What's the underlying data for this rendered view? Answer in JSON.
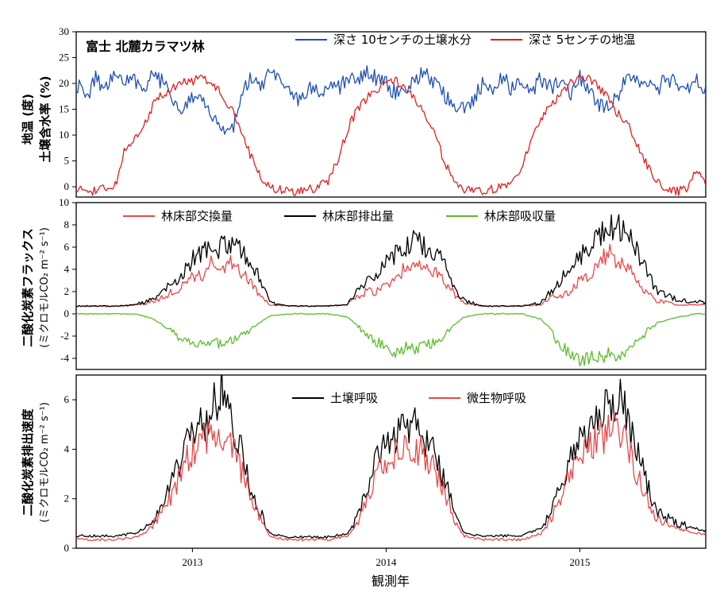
{
  "chart_data": [
    {
      "type": "line",
      "annotation": "富士 北麓カラマツ林",
      "ylabel_lines": [
        "地温 (度)",
        "土壌含水率 (%)"
      ],
      "ylim": [
        -2,
        30
      ],
      "yticks": [
        0,
        5,
        10,
        15,
        20,
        25,
        30
      ],
      "xlim": [
        2012.4,
        2015.65
      ],
      "legend_position": "top-right",
      "series": [
        {
          "name": "深さ 10センチの土壌水分",
          "color": "#1f4fb0",
          "x": [
            2012.4,
            2012.45,
            2012.5,
            2012.55,
            2012.6,
            2012.65,
            2012.7,
            2012.75,
            2012.8,
            2012.85,
            2012.9,
            2012.95,
            2013.0,
            2013.05,
            2013.1,
            2013.15,
            2013.2,
            2013.25,
            2013.3,
            2013.35,
            2013.4,
            2013.45,
            2013.5,
            2013.55,
            2013.6,
            2013.65,
            2013.7,
            2013.75,
            2013.8,
            2013.85,
            2013.9,
            2013.95,
            2014.0,
            2014.05,
            2014.1,
            2014.15,
            2014.2,
            2014.25,
            2014.3,
            2014.35,
            2014.4,
            2014.45,
            2014.5,
            2014.55,
            2014.6,
            2014.65,
            2014.7,
            2014.75,
            2014.8,
            2014.85,
            2014.9,
            2014.95,
            2015.0,
            2015.05,
            2015.1,
            2015.15,
            2015.2,
            2015.25,
            2015.3,
            2015.35,
            2015.4,
            2015.45,
            2015.5,
            2015.55,
            2015.6,
            2015.65
          ],
          "y": [
            20,
            17,
            21,
            19,
            22,
            20,
            21,
            19,
            22,
            20,
            17,
            15,
            18,
            16,
            14,
            12,
            10,
            17,
            21,
            19,
            22,
            20,
            18,
            17,
            19,
            18,
            20,
            19,
            21,
            20,
            22,
            21,
            20,
            18,
            19,
            21,
            22,
            20,
            18,
            16,
            15,
            17,
            20,
            18,
            21,
            19,
            20,
            18,
            21,
            19,
            20,
            18,
            21,
            19,
            16,
            15,
            18,
            22,
            21,
            20,
            19,
            21,
            20,
            19,
            21,
            19
          ]
        },
        {
          "name": "深さ 5センチの地温",
          "color": "#e02020",
          "x": [
            2012.4,
            2012.45,
            2012.5,
            2012.55,
            2012.6,
            2012.65,
            2012.7,
            2012.75,
            2012.8,
            2012.85,
            2012.9,
            2012.95,
            2013.0,
            2013.05,
            2013.1,
            2013.15,
            2013.2,
            2013.25,
            2013.3,
            2013.35,
            2013.4,
            2013.45,
            2013.5,
            2013.55,
            2013.6,
            2013.65,
            2013.7,
            2013.75,
            2013.8,
            2013.85,
            2013.9,
            2013.95,
            2014.0,
            2014.05,
            2014.1,
            2014.15,
            2014.2,
            2014.25,
            2014.3,
            2014.35,
            2014.4,
            2014.45,
            2014.5,
            2014.55,
            2014.6,
            2014.65,
            2014.7,
            2014.75,
            2014.8,
            2014.85,
            2014.9,
            2014.95,
            2015.0,
            2015.05,
            2015.1,
            2015.15,
            2015.2,
            2015.25,
            2015.3,
            2015.35,
            2015.4,
            2015.45,
            2015.5,
            2015.55,
            2015.6,
            2015.65
          ],
          "y": [
            -0.5,
            -1,
            -0.8,
            -0.5,
            0,
            7,
            9,
            12,
            16,
            18,
            19,
            20,
            20.5,
            21,
            20,
            18,
            15,
            11,
            6,
            2,
            0,
            -0.5,
            -1,
            -0.8,
            -0.5,
            0,
            1,
            5,
            11,
            15,
            17,
            19,
            20,
            20.5,
            19,
            17,
            14,
            10,
            5,
            1,
            -0.5,
            -1,
            -0.8,
            -0.5,
            0,
            1,
            4,
            9,
            13,
            16,
            18,
            20,
            21.5,
            21,
            19,
            17,
            14,
            12,
            8,
            4,
            1,
            -0.5,
            -1,
            -0.5,
            3,
            0.5
          ]
        }
      ]
    },
    {
      "type": "line",
      "ylabel_lines": [
        "二酸化炭素フラックス",
        "(ミクロモルCO₂ m⁻² s⁻¹)"
      ],
      "ylim": [
        -5,
        10
      ],
      "yticks": [
        -4,
        -2,
        0,
        2,
        4,
        6,
        8,
        10
      ],
      "xlim": [
        2012.4,
        2015.65
      ],
      "legend_position": "top",
      "series": [
        {
          "name": "林床部交換量",
          "color": "#e8484a",
          "x": [
            2012.4,
            2012.5,
            2012.6,
            2012.7,
            2012.75,
            2012.8,
            2012.85,
            2012.9,
            2012.95,
            2013.0,
            2013.05,
            2013.1,
            2013.15,
            2013.2,
            2013.25,
            2013.3,
            2013.35,
            2013.4,
            2013.5,
            2013.6,
            2013.7,
            2013.8,
            2013.85,
            2013.9,
            2013.95,
            2014.0,
            2014.05,
            2014.1,
            2014.15,
            2014.2,
            2014.25,
            2014.3,
            2014.35,
            2014.4,
            2014.5,
            2014.6,
            2014.7,
            2014.8,
            2014.85,
            2014.9,
            2014.95,
            2015.0,
            2015.05,
            2015.1,
            2015.15,
            2015.2,
            2015.25,
            2015.3,
            2015.35,
            2015.4,
            2015.5,
            2015.6,
            2015.65
          ],
          "y": [
            0.7,
            0.7,
            0.7,
            0.8,
            0.9,
            1.2,
            1.5,
            2,
            2.5,
            3.5,
            3.5,
            4.5,
            3.8,
            4.5,
            3.6,
            3,
            1.5,
            0.8,
            0.7,
            0.7,
            0.7,
            0.8,
            1.5,
            2,
            2,
            2.5,
            3,
            4.2,
            4.5,
            4,
            3.8,
            3,
            1.8,
            1,
            0.7,
            0.7,
            0.7,
            0.8,
            1.5,
            1.5,
            2,
            3,
            3.5,
            4.5,
            5.5,
            4.5,
            4,
            3,
            1.8,
            1.2,
            0.8,
            0.8,
            0.9
          ]
        },
        {
          "name": "林床部排出量",
          "color": "#000000",
          "x": [
            2012.4,
            2012.5,
            2012.6,
            2012.7,
            2012.75,
            2012.8,
            2012.85,
            2012.9,
            2012.95,
            2013.0,
            2013.05,
            2013.1,
            2013.15,
            2013.2,
            2013.25,
            2013.3,
            2013.35,
            2013.4,
            2013.5,
            2013.6,
            2013.7,
            2013.8,
            2013.85,
            2013.9,
            2013.95,
            2014.0,
            2014.05,
            2014.1,
            2014.15,
            2014.2,
            2014.25,
            2014.3,
            2014.35,
            2014.4,
            2014.5,
            2014.6,
            2014.7,
            2014.8,
            2014.85,
            2014.9,
            2014.95,
            2015.0,
            2015.05,
            2015.1,
            2015.15,
            2015.2,
            2015.25,
            2015.3,
            2015.35,
            2015.4,
            2015.5,
            2015.6,
            2015.65
          ],
          "y": [
            0.7,
            0.7,
            0.7,
            0.8,
            1,
            1.5,
            2,
            2.8,
            3.5,
            5,
            5.5,
            5.8,
            6,
            6,
            5.8,
            5,
            3,
            1,
            0.7,
            0.7,
            0.7,
            0.8,
            2,
            3,
            3.8,
            4.5,
            5.5,
            6,
            6.5,
            6,
            5.5,
            4.5,
            2.5,
            1.2,
            0.7,
            0.7,
            0.7,
            1,
            2,
            3,
            4,
            5,
            6,
            7,
            7.8,
            8,
            7,
            5.5,
            3.5,
            2,
            1.3,
            1.1,
            1
          ]
        },
        {
          "name": "林床部吸収量",
          "color": "#5bbd2a",
          "x": [
            2012.4,
            2012.5,
            2012.6,
            2012.7,
            2012.75,
            2012.8,
            2012.85,
            2012.9,
            2012.95,
            2013.0,
            2013.05,
            2013.1,
            2013.15,
            2013.2,
            2013.25,
            2013.3,
            2013.35,
            2013.4,
            2013.5,
            2013.6,
            2013.7,
            2013.8,
            2013.85,
            2013.9,
            2013.95,
            2014.0,
            2014.05,
            2014.1,
            2014.15,
            2014.2,
            2014.25,
            2014.3,
            2014.35,
            2014.4,
            2014.5,
            2014.6,
            2014.7,
            2014.8,
            2014.85,
            2014.9,
            2014.95,
            2015.0,
            2015.05,
            2015.1,
            2015.15,
            2015.2,
            2015.25,
            2015.3,
            2015.35,
            2015.4,
            2015.5,
            2015.6,
            2015.65
          ],
          "y": [
            0,
            0,
            0,
            0,
            -0.2,
            -0.5,
            -1,
            -1.5,
            -2.5,
            -2.8,
            -2.5,
            -2.5,
            -2.8,
            -2.5,
            -2,
            -1.5,
            -0.8,
            -0.2,
            0,
            0,
            0,
            -0.3,
            -1,
            -2,
            -2.5,
            -3,
            -3.5,
            -3,
            -3.2,
            -2.8,
            -2.5,
            -2,
            -1,
            -0.3,
            0,
            0,
            0,
            -0.5,
            -1.5,
            -3,
            -3.5,
            -4,
            -4,
            -4,
            -3.5,
            -3.8,
            -3,
            -2.5,
            -1.5,
            -0.8,
            -0.3,
            0,
            0
          ]
        }
      ]
    },
    {
      "type": "line",
      "ylabel_lines": [
        "二酸化炭素排出速度",
        "(ミクロモルCO₂ m⁻² s⁻¹)"
      ],
      "ylim": [
        0,
        7
      ],
      "yticks": [
        0,
        2,
        4,
        6
      ],
      "xlim": [
        2012.4,
        2015.65
      ],
      "xticks": [
        2013,
        2014,
        2015
      ],
      "xlabel": "観測年",
      "legend_position": "top",
      "series": [
        {
          "name": "土壌呼吸",
          "color": "#000000",
          "x": [
            2012.4,
            2012.5,
            2012.6,
            2012.7,
            2012.75,
            2012.8,
            2012.85,
            2012.9,
            2012.95,
            2013.0,
            2013.05,
            2013.1,
            2013.15,
            2013.2,
            2013.25,
            2013.3,
            2013.35,
            2013.4,
            2013.5,
            2013.6,
            2013.7,
            2013.8,
            2013.85,
            2013.9,
            2013.95,
            2014.0,
            2014.05,
            2014.1,
            2014.15,
            2014.2,
            2014.25,
            2014.3,
            2014.35,
            2014.4,
            2014.5,
            2014.6,
            2014.7,
            2014.8,
            2014.85,
            2014.9,
            2014.95,
            2015.0,
            2015.05,
            2015.1,
            2015.15,
            2015.2,
            2015.25,
            2015.3,
            2015.35,
            2015.4,
            2015.5,
            2015.6,
            2015.65
          ],
          "y": [
            0.5,
            0.5,
            0.5,
            0.6,
            0.8,
            1.2,
            1.8,
            2.8,
            3.8,
            4.8,
            5,
            5.5,
            6.5,
            5,
            4,
            2.5,
            1.5,
            0.6,
            0.45,
            0.45,
            0.45,
            0.6,
            1.2,
            2.5,
            3.5,
            4.2,
            4.5,
            4.8,
            4.9,
            4.5,
            3.8,
            2.8,
            1.5,
            0.6,
            0.5,
            0.5,
            0.5,
            0.8,
            1.5,
            2.5,
            3.5,
            4.3,
            5,
            5.3,
            5.6,
            6.2,
            5,
            3.8,
            2.5,
            1.5,
            1,
            0.8,
            0.7
          ]
        },
        {
          "name": "微生物呼吸",
          "color": "#e8484a",
          "x": [
            2012.4,
            2012.5,
            2012.6,
            2012.7,
            2012.75,
            2012.8,
            2012.85,
            2012.9,
            2012.95,
            2013.0,
            2013.05,
            2013.1,
            2013.15,
            2013.2,
            2013.25,
            2013.3,
            2013.35,
            2013.4,
            2013.5,
            2013.6,
            2013.7,
            2013.8,
            2013.85,
            2013.9,
            2013.95,
            2014.0,
            2014.05,
            2014.1,
            2014.15,
            2014.2,
            2014.25,
            2014.3,
            2014.35,
            2014.4,
            2014.5,
            2014.6,
            2014.7,
            2014.8,
            2014.85,
            2014.9,
            2014.95,
            2015.0,
            2015.05,
            2015.1,
            2015.15,
            2015.2,
            2015.25,
            2015.3,
            2015.35,
            2015.4,
            2015.5,
            2015.6,
            2015.65
          ],
          "y": [
            0.35,
            0.35,
            0.35,
            0.45,
            0.6,
            1,
            1.5,
            2.3,
            3.2,
            4,
            4.2,
            4.5,
            4.8,
            4,
            3.2,
            2,
            1.2,
            0.45,
            0.35,
            0.35,
            0.35,
            0.5,
            1,
            2,
            3,
            3.5,
            3.8,
            4,
            4.2,
            3.8,
            3.2,
            2.3,
            1.2,
            0.5,
            0.35,
            0.35,
            0.35,
            0.6,
            1.2,
            2,
            3,
            3.6,
            4.2,
            4.5,
            4.6,
            4.8,
            4,
            3,
            2,
            1.2,
            0.8,
            0.6,
            0.55
          ]
        }
      ]
    }
  ]
}
